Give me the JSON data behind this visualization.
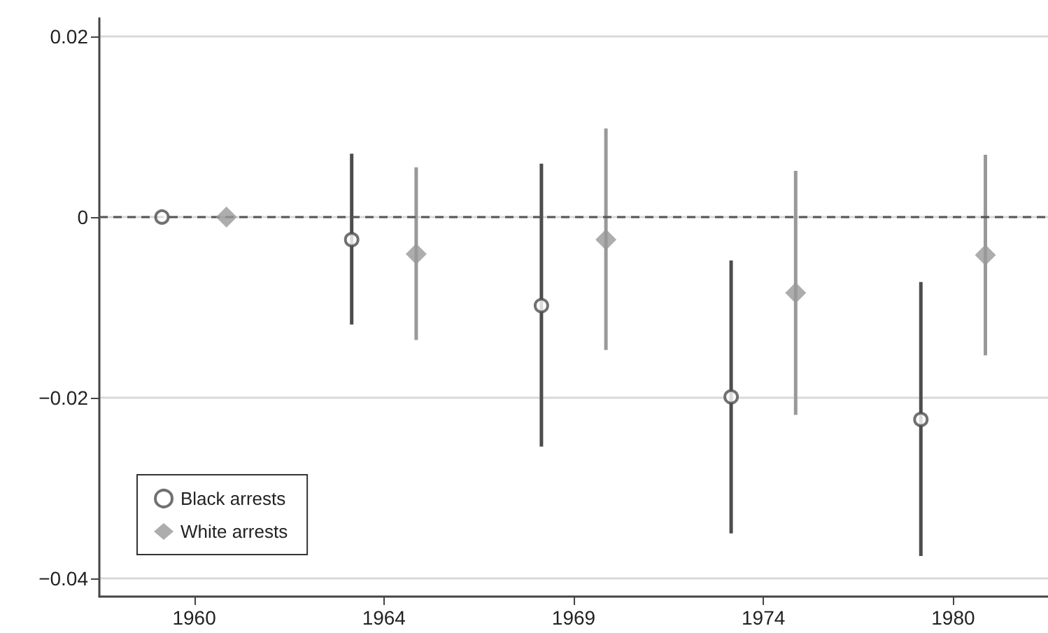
{
  "chart_data": {
    "type": "scatter",
    "categories": [
      "1960",
      "1964",
      "1969",
      "1974",
      "1980"
    ],
    "series": [
      {
        "name": "Black arrests",
        "color": "#4d4d4d",
        "marker": "circle",
        "values": [
          0,
          -0.0025,
          -0.0098,
          -0.0199,
          -0.0224
        ],
        "errors": [
          null,
          [
            -0.0119,
            0.007
          ],
          [
            -0.0254,
            0.0059
          ],
          [
            -0.035,
            -0.0048
          ],
          [
            -0.0375,
            -0.0072
          ]
        ]
      },
      {
        "name": "White arrests",
        "color": "#999999",
        "marker": "diamond",
        "values": [
          0,
          -0.0041,
          -0.0025,
          -0.0084,
          -0.0042
        ],
        "errors": [
          null,
          [
            -0.0136,
            0.0055
          ],
          [
            -0.0147,
            0.0098
          ],
          [
            -0.0219,
            0.0051
          ],
          [
            -0.0153,
            0.0069
          ]
        ]
      }
    ],
    "ylim": [
      -0.042,
      0.022
    ],
    "yticks": [
      {
        "value": 0.02,
        "label": "0.02"
      },
      {
        "value": 0,
        "label": "0"
      },
      {
        "value": -0.02,
        "label": "−0.02"
      },
      {
        "value": -0.04,
        "label": "−0.04"
      }
    ],
    "grid": "y",
    "legend": "bottom left",
    "ref_lines": [
      {
        "axis": "y",
        "value": 0,
        "color": "#555555",
        "line_style": "dashed"
      }
    ]
  }
}
